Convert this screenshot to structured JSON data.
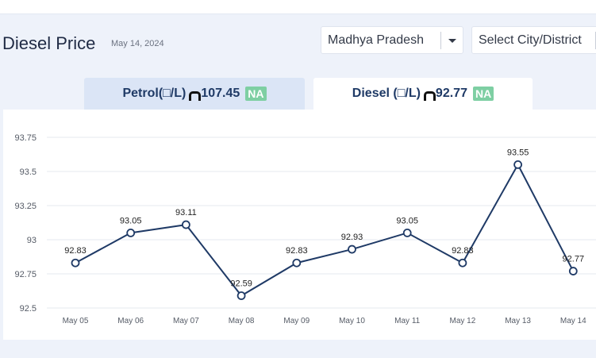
{
  "header": {
    "title": "Diesel Price",
    "date": "May 14, 2024",
    "state_select": "Madhya Pradesh",
    "city_select": "Select City/District"
  },
  "tabs": [
    {
      "label": "Petrol(□/L)",
      "value": "107.45",
      "badge": "NA"
    },
    {
      "label": "Diesel (□/L)",
      "value": "92.77",
      "badge": "NA"
    }
  ],
  "icons": {
    "currency": "rupee-icon",
    "dropdown": "caret-down-icon"
  },
  "colors": {
    "line": "#1f3a66",
    "badge": "#7ecfa3",
    "active_tab": "#ffffff",
    "inactive_tab": "#dbe5f6"
  },
  "chart_data": {
    "type": "line",
    "categories": [
      "May 05",
      "May 06",
      "May 07",
      "May 08",
      "May 09",
      "May 10",
      "May 11",
      "May 12",
      "May 13",
      "May 14"
    ],
    "values": [
      92.83,
      93.05,
      93.11,
      92.59,
      92.83,
      92.93,
      93.05,
      92.83,
      93.55,
      92.77
    ],
    "data_labels": [
      "92.83",
      "93.05",
      "93.11",
      "92.59",
      "92.83",
      "92.93",
      "93.05",
      "92.83",
      "93.55",
      "92.77"
    ],
    "y_ticks": [
      92.5,
      92.75,
      93,
      93.25,
      93.5,
      93.75
    ],
    "y_tick_labels": [
      "92.5",
      "92.75",
      "93",
      "93.25",
      "93.5",
      "93.75"
    ],
    "ylim": [
      92.5,
      93.75
    ],
    "grid": true,
    "legend": "none"
  }
}
